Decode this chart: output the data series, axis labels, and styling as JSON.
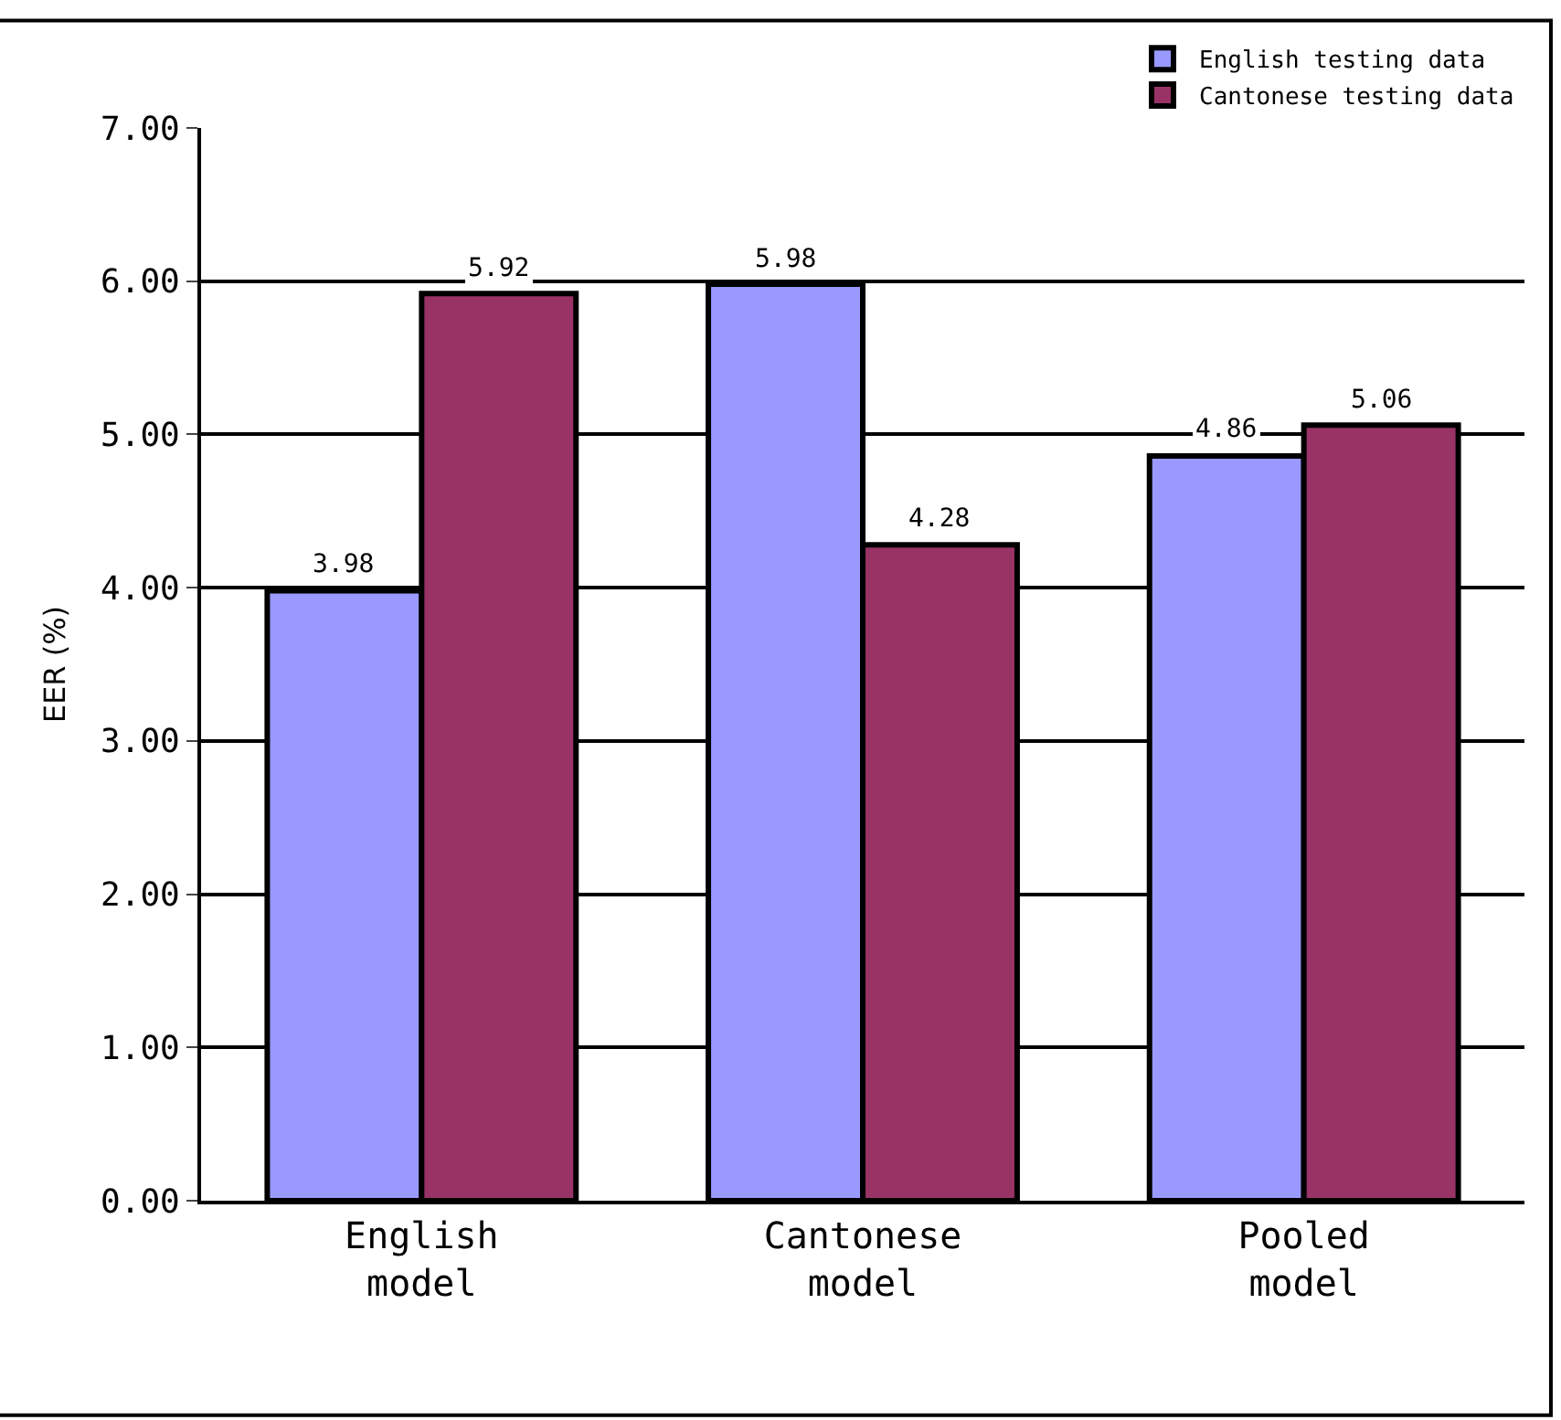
{
  "chart_data": {
    "type": "bar",
    "ylabel": "EER (%)",
    "categories": [
      "English model",
      "Cantonese model",
      "Pooled model"
    ],
    "series": [
      {
        "name": "English testing data",
        "color": "#9999ff",
        "values": [
          3.98,
          5.98,
          4.86
        ]
      },
      {
        "name": "Cantonese testing data",
        "color": "#993366",
        "values": [
          5.92,
          4.28,
          5.06
        ]
      }
    ],
    "ylim": [
      0,
      7
    ],
    "yticks": [
      {
        "value": 0,
        "label": "0.00"
      },
      {
        "value": 1,
        "label": "1.00"
      },
      {
        "value": 2,
        "label": "2.00"
      },
      {
        "value": 3,
        "label": "3.00"
      },
      {
        "value": 4,
        "label": "4.00"
      },
      {
        "value": 5,
        "label": "5.00"
      },
      {
        "value": 6,
        "label": "6.00"
      },
      {
        "value": 7,
        "label": "7.00"
      }
    ],
    "grid": "y",
    "legend": "top right",
    "data_labels": true
  }
}
